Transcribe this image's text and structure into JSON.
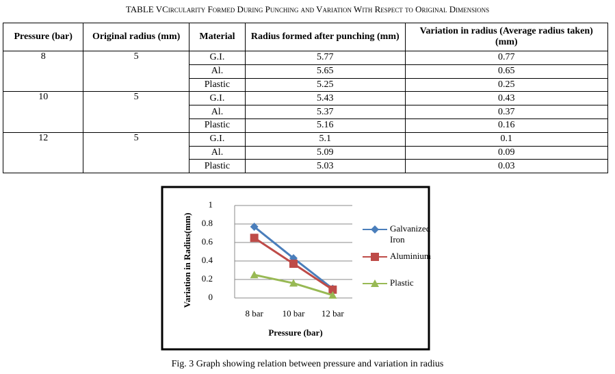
{
  "table": {
    "title": "TABLE VCircularity Formed During Punching and Variation With Respect to Original Dimensions",
    "header": [
      "Pressure (bar)",
      "Original radius (mm)",
      "Material",
      "Radius formed after punching (mm)",
      "Variation in radius (Average radius taken) (mm)"
    ],
    "groups": [
      {
        "pressure": "8",
        "radius": "5",
        "rows": [
          [
            "G.I.",
            "5.77",
            "0.77"
          ],
          [
            "Al.",
            "5.65",
            "0.65"
          ],
          [
            "Plastic",
            "5.25",
            "0.25"
          ]
        ]
      },
      {
        "pressure": "10",
        "radius": "5",
        "rows": [
          [
            "G.I.",
            "5.43",
            "0.43"
          ],
          [
            "Al.",
            "5.37",
            "0.37"
          ],
          [
            "Plastic",
            "5.16",
            "0.16"
          ]
        ]
      },
      {
        "pressure": "12",
        "radius": "5",
        "rows": [
          [
            "G.I.",
            "5.1",
            "0.1"
          ],
          [
            "Al.",
            "5.09",
            "0.09"
          ],
          [
            "Plastic",
            "5.03",
            "0.03"
          ]
        ]
      }
    ]
  },
  "chart_data": {
    "type": "line",
    "x_label": "Pressure (bar)",
    "y_label": "Variation in Radius(mm)",
    "categories": [
      "8 bar",
      "10 bar",
      "12 bar"
    ],
    "series": [
      {
        "name": "Galvanized Iron",
        "color": "#4a7ebb",
        "marker": "diamond",
        "values": [
          0.77,
          0.43,
          0.1
        ]
      },
      {
        "name": "Aluminium",
        "color": "#be4b48",
        "marker": "square",
        "values": [
          0.65,
          0.37,
          0.09
        ]
      },
      {
        "name": "Plastic",
        "color": "#98b954",
        "marker": "triangle",
        "values": [
          0.25,
          0.16,
          0.03
        ]
      }
    ],
    "ylim": [
      0,
      1
    ],
    "yticks": [
      0,
      0.2,
      0.4,
      0.6,
      0.8,
      1
    ],
    "grid": true,
    "legend": "right"
  },
  "caption": "Fig. 3 Graph showing relation between pressure and variation in radius"
}
